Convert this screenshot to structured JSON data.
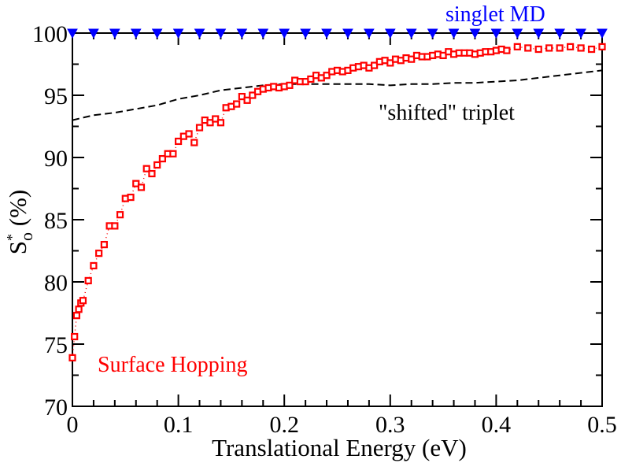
{
  "chart_data": {
    "type": "scatter",
    "title": "",
    "xlabel": "Translational Energy (eV)",
    "ylabel": {
      "main": "S",
      "sup": "*",
      "sub": "o",
      "tail": " (%)"
    },
    "xlim": [
      0,
      0.5
    ],
    "ylim": [
      70,
      100
    ],
    "x_ticks": [
      0,
      0.1,
      0.2,
      0.3,
      0.4,
      0.5
    ],
    "x_tick_labels": [
      "0",
      "0.1",
      "0.2",
      "0.3",
      "0.4",
      "0.5"
    ],
    "y_ticks": [
      70,
      75,
      80,
      85,
      90,
      95,
      100
    ],
    "y_tick_labels": [
      "70",
      "75",
      "80",
      "85",
      "90",
      "95",
      "100"
    ],
    "grid": false,
    "series": [
      {
        "name": "singlet MD",
        "style": "triangle-down-markers",
        "color": "#0000ff",
        "x": [
          0.0,
          0.02,
          0.04,
          0.06,
          0.08,
          0.1,
          0.12,
          0.14,
          0.16,
          0.18,
          0.2,
          0.22,
          0.24,
          0.26,
          0.28,
          0.3,
          0.32,
          0.34,
          0.36,
          0.38,
          0.4,
          0.42,
          0.44,
          0.46,
          0.48,
          0.5
        ],
        "y": [
          100,
          100,
          100,
          100,
          100,
          100,
          100,
          100,
          100,
          100,
          100,
          100,
          100,
          100,
          100,
          100,
          100,
          100,
          100,
          100,
          100,
          100,
          100,
          100,
          100,
          100
        ]
      },
      {
        "name": "\"shifted\" triplet",
        "style": "dashed-line",
        "color": "#000000",
        "x": [
          0.0,
          0.01,
          0.02,
          0.04,
          0.06,
          0.08,
          0.1,
          0.12,
          0.14,
          0.16,
          0.18,
          0.2,
          0.22,
          0.24,
          0.26,
          0.28,
          0.3,
          0.32,
          0.34,
          0.36,
          0.38,
          0.4,
          0.42,
          0.44,
          0.46,
          0.48,
          0.5
        ],
        "y": [
          93.0,
          93.2,
          93.4,
          93.6,
          93.9,
          94.2,
          94.7,
          95.0,
          95.4,
          95.6,
          95.8,
          95.9,
          95.9,
          95.9,
          95.9,
          95.9,
          95.8,
          95.9,
          95.9,
          96.0,
          96.0,
          96.1,
          96.2,
          96.4,
          96.6,
          96.8,
          97.0
        ]
      },
      {
        "name": "Surface Hopping",
        "style": "square-markers-dotted",
        "color": "#ff0000",
        "x": [
          0.0,
          0.002,
          0.004,
          0.006,
          0.008,
          0.01,
          0.015,
          0.02,
          0.025,
          0.03,
          0.035,
          0.04,
          0.045,
          0.05,
          0.055,
          0.06,
          0.065,
          0.07,
          0.075,
          0.08,
          0.085,
          0.09,
          0.095,
          0.1,
          0.105,
          0.11,
          0.115,
          0.12,
          0.125,
          0.13,
          0.135,
          0.14,
          0.145,
          0.15,
          0.155,
          0.16,
          0.165,
          0.17,
          0.175,
          0.18,
          0.185,
          0.19,
          0.195,
          0.2,
          0.205,
          0.21,
          0.215,
          0.22,
          0.225,
          0.23,
          0.235,
          0.24,
          0.245,
          0.25,
          0.255,
          0.26,
          0.265,
          0.27,
          0.275,
          0.28,
          0.285,
          0.29,
          0.295,
          0.3,
          0.305,
          0.31,
          0.315,
          0.32,
          0.325,
          0.33,
          0.335,
          0.34,
          0.345,
          0.35,
          0.355,
          0.36,
          0.365,
          0.37,
          0.375,
          0.38,
          0.385,
          0.39,
          0.395,
          0.4,
          0.405,
          0.41,
          0.42,
          0.43,
          0.44,
          0.45,
          0.46,
          0.47,
          0.48,
          0.49,
          0.5
        ],
        "y": [
          73.9,
          75.6,
          77.3,
          77.8,
          78.3,
          78.5,
          80.1,
          81.3,
          82.3,
          83.0,
          84.5,
          84.5,
          85.4,
          86.7,
          86.8,
          87.9,
          87.6,
          89.1,
          88.7,
          89.4,
          89.9,
          90.3,
          90.3,
          91.3,
          91.7,
          91.9,
          91.2,
          92.4,
          93.0,
          92.8,
          93.1,
          92.8,
          94.0,
          94.1,
          94.3,
          94.9,
          94.6,
          95.0,
          95.3,
          95.5,
          95.6,
          95.7,
          95.6,
          95.7,
          95.8,
          96.2,
          96.1,
          96.1,
          96.3,
          96.6,
          96.4,
          96.6,
          96.9,
          97.0,
          96.9,
          97.0,
          97.2,
          97.3,
          97.4,
          97.2,
          97.4,
          97.7,
          97.8,
          97.6,
          97.9,
          97.8,
          98.0,
          97.9,
          98.2,
          98.1,
          98.1,
          98.2,
          98.3,
          98.2,
          98.5,
          98.3,
          98.4,
          98.4,
          98.4,
          98.3,
          98.4,
          98.5,
          98.5,
          98.6,
          98.7,
          98.6,
          98.9,
          98.8,
          98.7,
          98.8,
          98.8,
          98.9,
          98.8,
          98.7,
          98.9
        ]
      }
    ],
    "annotations": [
      {
        "series": "singlet MD",
        "text": "singlet MD",
        "color": "#0000ff"
      },
      {
        "series": "\"shifted\" triplet",
        "text": "\"shifted\" triplet",
        "color": "#000000"
      },
      {
        "series": "Surface Hopping",
        "text": "Surface Hopping",
        "color": "#ff0000"
      }
    ]
  }
}
